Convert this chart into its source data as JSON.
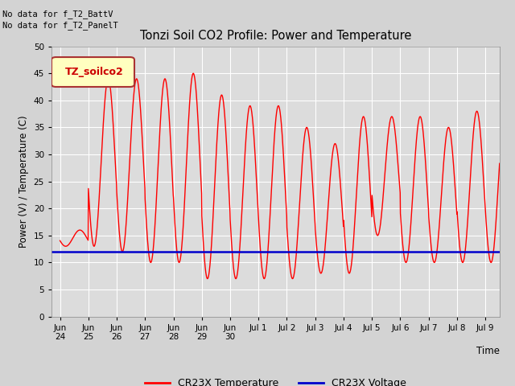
{
  "title": "Tonzi Soil CO2 Profile: Power and Temperature",
  "ylabel": "Power (V) / Temperature (C)",
  "xlabel": "Time",
  "top_left_text_line1": "No data for f_T2_BattV",
  "top_left_text_line2": "No data for f_T2_PanelT",
  "legend_box_label": "TZ_soilco2",
  "ylim": [
    0,
    50
  ],
  "yticks": [
    0,
    5,
    10,
    15,
    20,
    25,
    30,
    35,
    40,
    45,
    50
  ],
  "bg_color": "#d3d3d3",
  "plot_bg_color": "#dcdcdc",
  "temp_color": "#ff0000",
  "voltage_color": "#0000cc",
  "voltage_value": 12.0,
  "legend_temp_label": "CR23X Temperature",
  "legend_volt_label": "CR23X Voltage",
  "day_max": [
    16,
    44,
    44,
    44,
    45,
    41,
    39,
    39,
    35,
    32,
    37,
    37,
    37,
    35,
    38,
    38
  ],
  "day_min": [
    13,
    13,
    12,
    10,
    10,
    7,
    7,
    7,
    7,
    8,
    8,
    15,
    10,
    10,
    10,
    10
  ],
  "n_days": 15.5
}
